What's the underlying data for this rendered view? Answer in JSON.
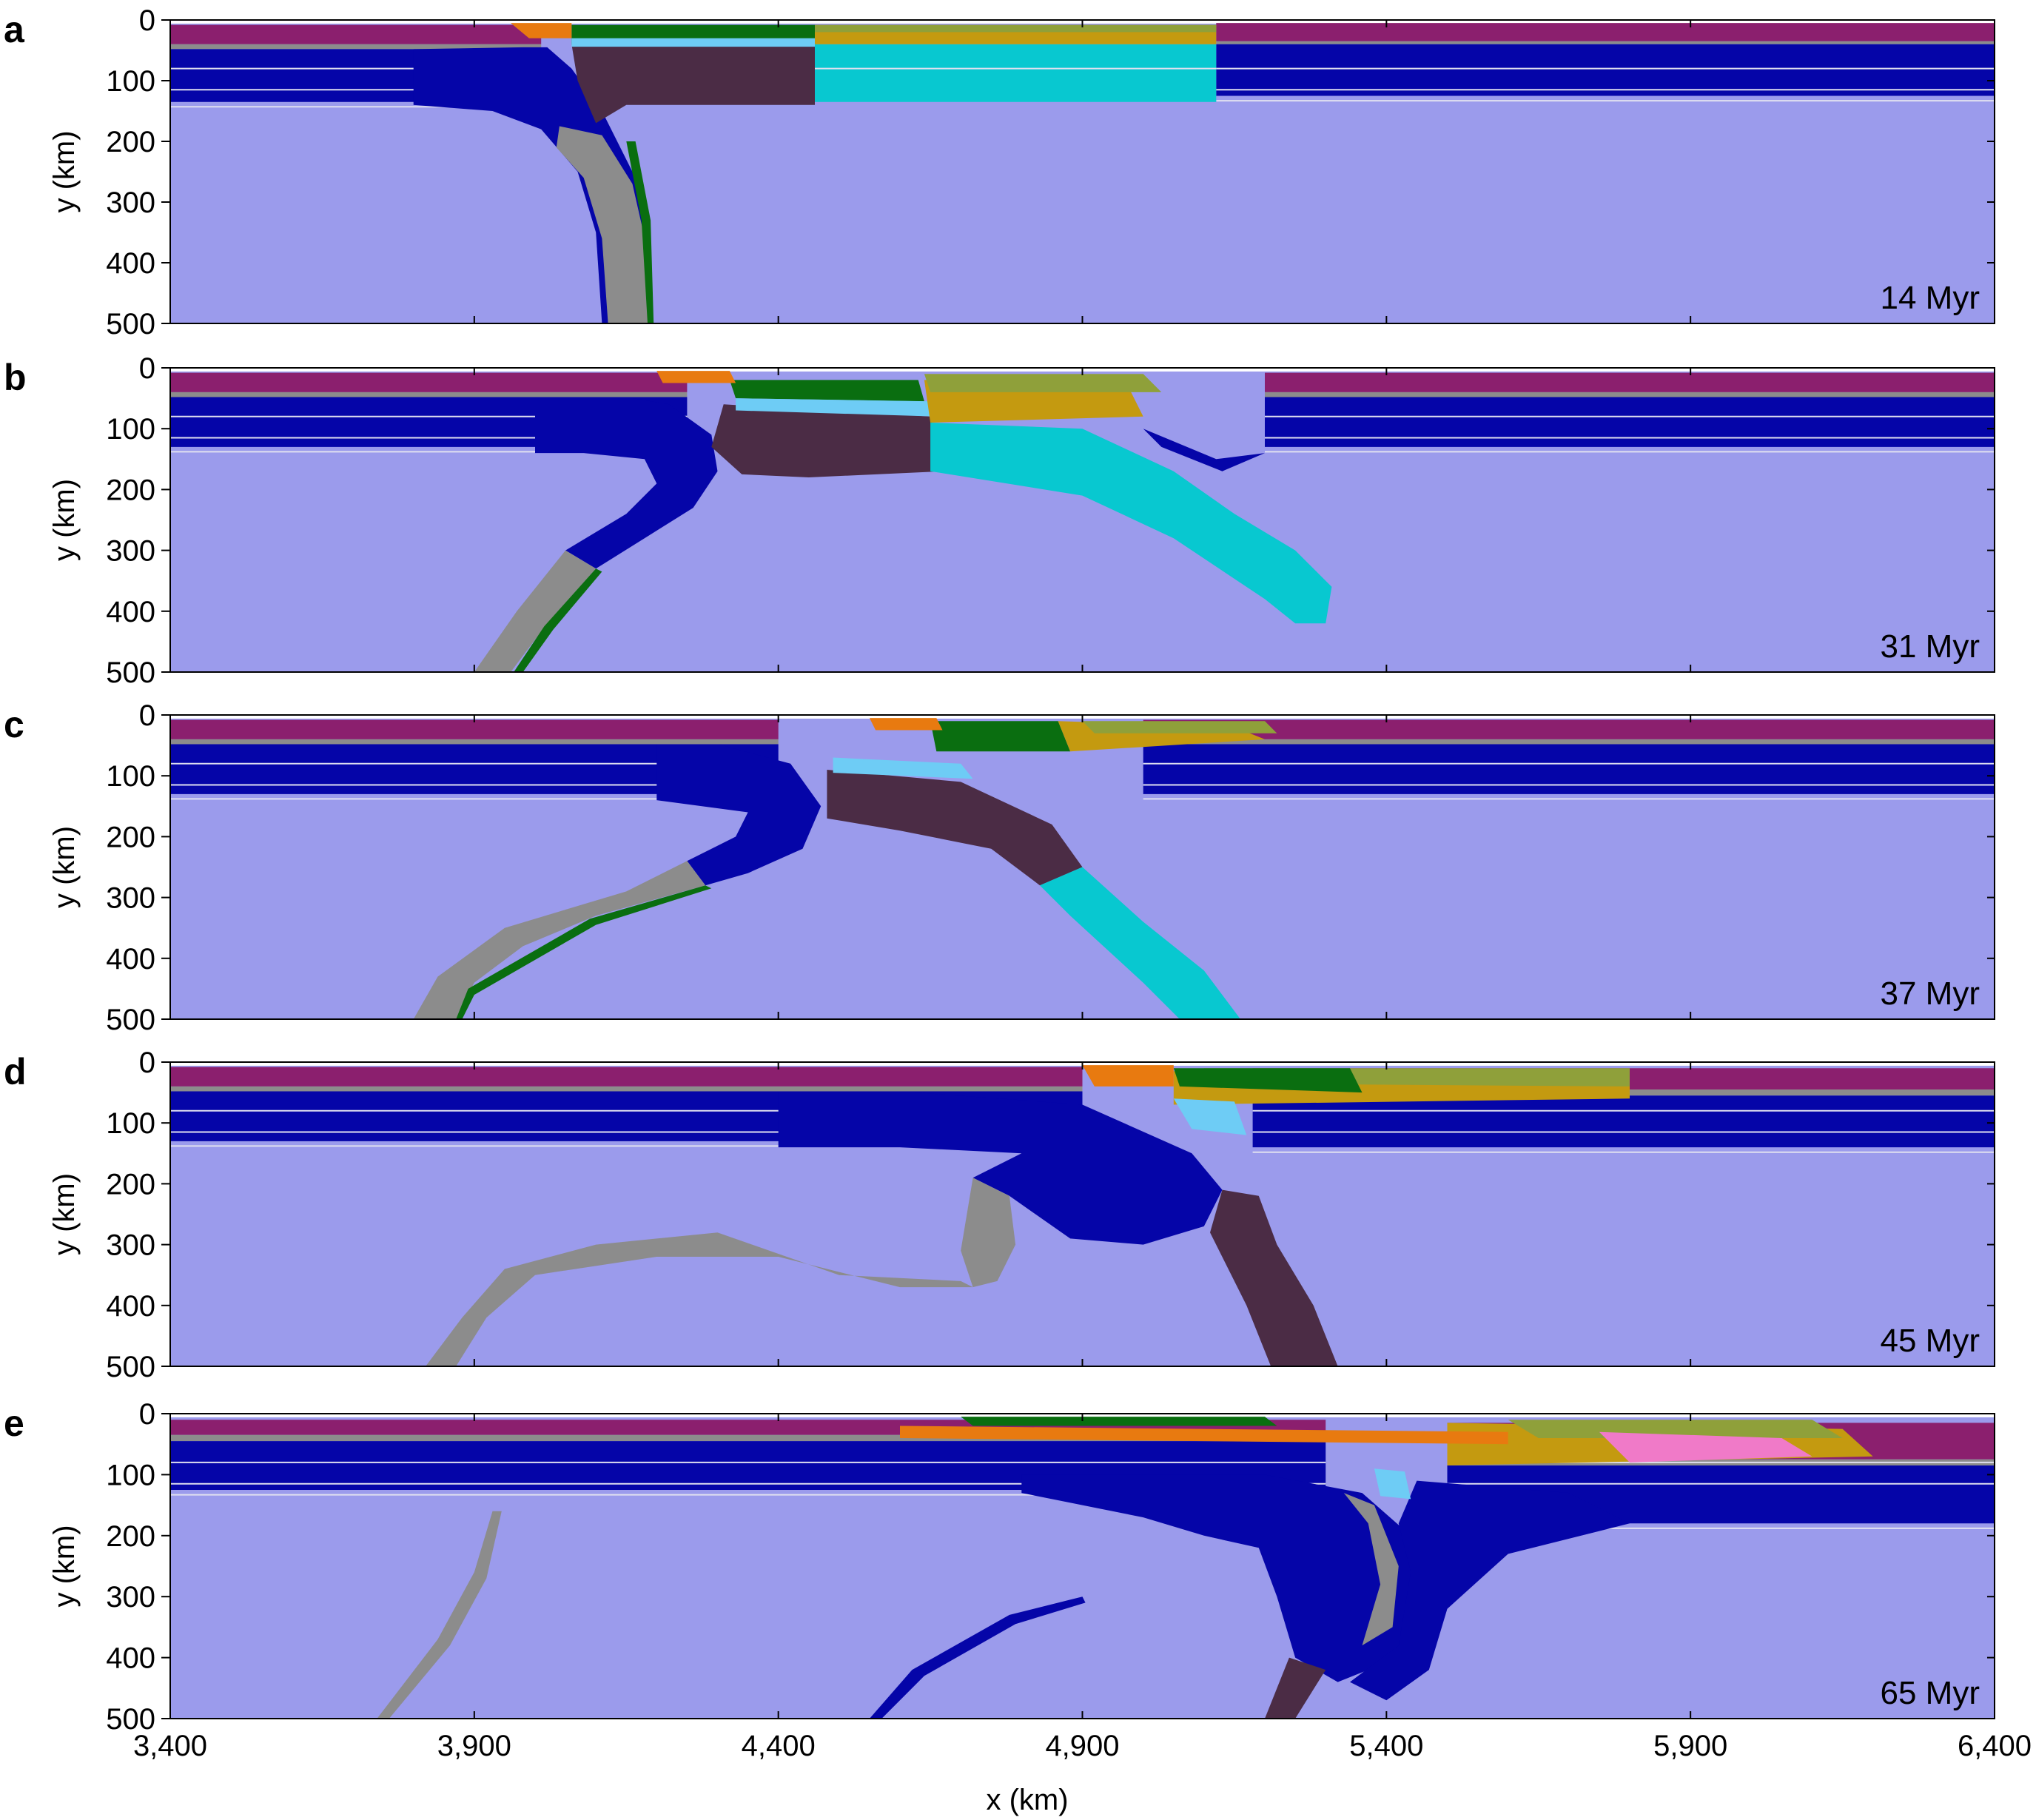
{
  "figure": {
    "x_axis": {
      "label": "x (km)",
      "range": [
        3400,
        6400
      ],
      "ticks": [
        3400,
        3900,
        4400,
        4900,
        5400,
        5900,
        6400
      ],
      "tick_labels": [
        "3,400",
        "3,900",
        "4,400",
        "4,900",
        "5,400",
        "5,900",
        "6,400"
      ]
    },
    "y_axis": {
      "label": "y (km)",
      "range": [
        0,
        500
      ],
      "ticks": [
        0,
        100,
        200,
        300,
        400,
        500
      ],
      "tick_labels": [
        "0",
        "100",
        "200",
        "300",
        "400",
        "500"
      ]
    },
    "panels": [
      {
        "letter": "a",
        "time_label": "14 Myr",
        "time_myr": 14
      },
      {
        "letter": "b",
        "time_label": "31 Myr",
        "time_myr": 31
      },
      {
        "letter": "c",
        "time_label": "37 Myr",
        "time_myr": 37
      },
      {
        "letter": "d",
        "time_label": "45 Myr",
        "time_myr": 45
      },
      {
        "letter": "e",
        "time_label": "65 Myr",
        "time_myr": 65
      }
    ],
    "colors": {
      "mantle": "#9B9BEC",
      "lithospheric_mantle": "#0505A8",
      "upper_crust": "#8B1F6E",
      "weak_zone": "#8C8C8C",
      "plate_c_mantle": "#4B2C45",
      "plate_d_mantle": "#08C8D0",
      "continent_green": "#0A6E10",
      "continent_gold": "#C49A10",
      "continent_olive": "#8FA03A",
      "light_blue": "#6ECCF5",
      "sediment": "#E87A10",
      "isotherm": "#E0E0F0"
    }
  }
}
